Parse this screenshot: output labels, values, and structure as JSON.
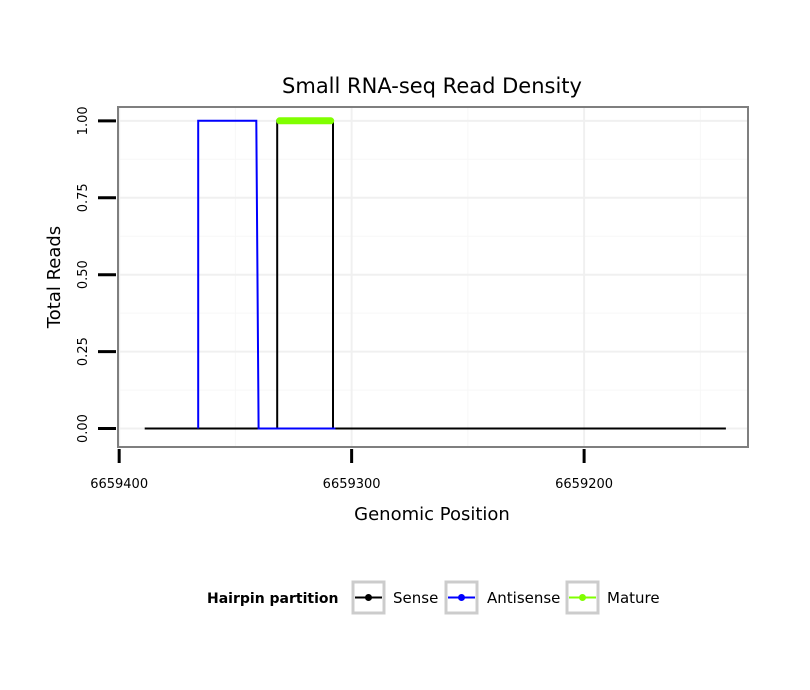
{
  "chart_data": {
    "type": "line",
    "title": "Small RNA-seq Read Density",
    "xlabel": "Genomic Position",
    "ylabel": "Total Reads",
    "x_reversed": true,
    "xlim": [
      6659400.5,
      6659129.5
    ],
    "ylim": [
      -0.06,
      1.045
    ],
    "x_ticks": [
      6659400,
      6659300,
      6659200
    ],
    "x_tick_labels": [
      "6659400",
      "6659300",
      "6659200"
    ],
    "y_ticks": [
      0,
      0.25,
      0.5,
      0.75,
      1
    ],
    "y_tick_labels": [
      "0.00",
      "0.25",
      "0.50",
      "0.75",
      "1.00"
    ],
    "grid": true,
    "legend": {
      "title": "Hairpin partition",
      "position": "bottom",
      "entries": [
        "Sense",
        "Antisense",
        "Mature"
      ]
    },
    "series": [
      {
        "name": "Sense",
        "color": "#000000",
        "x": [
          6659389,
          6659366,
          6659366,
          6659341,
          6659341,
          6659332,
          6659332,
          6659308,
          6659308,
          6659139
        ],
        "y": [
          0,
          0,
          0,
          0,
          0,
          0,
          1,
          1,
          0,
          0
        ]
      },
      {
        "name": "Antisense",
        "color": "#0000ff",
        "x": [
          6659366,
          6659366,
          6659341,
          6659340,
          6659340,
          6659307
        ],
        "y": [
          0,
          1,
          1,
          0,
          0,
          0
        ]
      },
      {
        "name": "Mature",
        "color": "#80ff00",
        "x": [
          6659331,
          6659309
        ],
        "y": [
          1,
          1
        ]
      }
    ]
  }
}
